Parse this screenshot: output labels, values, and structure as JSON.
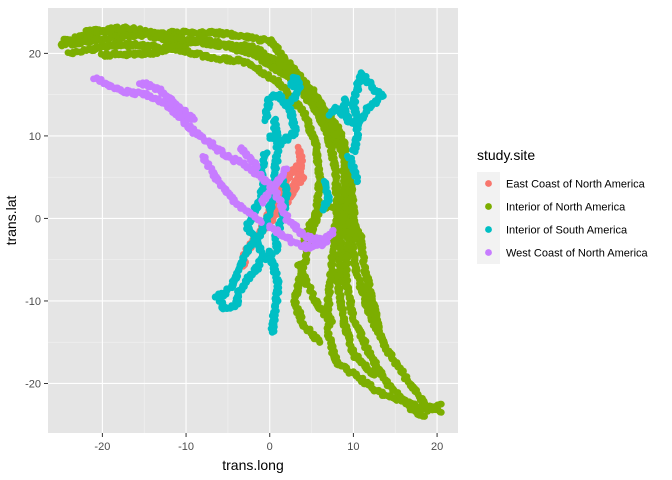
{
  "chart_data": {
    "type": "scatter",
    "xlabel": "trans.long",
    "ylabel": "trans.lat",
    "xlim": [
      -26.5,
      22.5
    ],
    "ylim": [
      -26,
      25.5
    ],
    "xticks": [
      -20,
      -10,
      0,
      10,
      20
    ],
    "yticks": [
      -20,
      -10,
      0,
      10,
      20
    ],
    "xtick_labels": [
      "-20",
      "-10",
      "0",
      "10",
      "20"
    ],
    "ytick_labels": [
      "-20",
      "-10",
      "0",
      "10",
      "20"
    ],
    "grid": true,
    "panel_background": "#e5e5e5",
    "legend": {
      "title": "study.site",
      "placement": "right"
    },
    "series": [
      {
        "name": "East Coast of North America",
        "color": "#f8766d",
        "tracks": [
          [
            [
              3.5,
              8.5
            ],
            [
              3.8,
              7.0
            ],
            [
              3.6,
              5.5
            ],
            [
              3.0,
              4.2
            ],
            [
              2.2,
              3.0
            ],
            [
              1.4,
              1.6
            ],
            [
              0.6,
              0.4
            ],
            [
              0.2,
              -0.2
            ],
            [
              -0.6,
              -1.2
            ],
            [
              -1.4,
              -2.2
            ],
            [
              -2.2,
              -3.0
            ],
            [
              -2.9,
              -4.3
            ],
            [
              -3.2,
              -5.8
            ]
          ],
          [
            [
              3.2,
              6.6
            ],
            [
              2.6,
              5.6
            ],
            [
              2.0,
              4.8
            ],
            [
              1.3,
              3.3
            ],
            [
              0.7,
              2.2
            ],
            [
              0.0,
              1.0
            ],
            [
              -0.4,
              0.3
            ]
          ],
          [
            [
              4.1,
              5.0
            ],
            [
              3.2,
              4.0
            ],
            [
              2.4,
              2.5
            ],
            [
              1.4,
              1.3
            ],
            [
              0.5,
              0.6
            ],
            [
              -0.3,
              -0.4
            ],
            [
              -1.0,
              -0.9
            ]
          ]
        ]
      },
      {
        "name": "Interior of North America",
        "color": "#7cae00",
        "tracks": [
          [
            [
              -24.5,
              21.5
            ],
            [
              -20.0,
              22.5
            ],
            [
              -16.0,
              22.7
            ],
            [
              -12.0,
              21.5
            ],
            [
              -7.0,
              21.2
            ],
            [
              -2.0,
              20.8
            ],
            [
              2.0,
              18.0
            ],
            [
              5.0,
              14.5
            ],
            [
              7.0,
              10.0
            ],
            [
              8.0,
              5.0
            ],
            [
              8.0,
              0.0
            ],
            [
              7.5,
              -5.0
            ],
            [
              7.0,
              -10.0
            ],
            [
              7.0,
              -14.0
            ],
            [
              8.0,
              -17.5
            ],
            [
              11.0,
              -19.5
            ],
            [
              13.0,
              -21.0
            ],
            [
              16.5,
              -22.3
            ],
            [
              19.0,
              -23.2
            ],
            [
              20.5,
              -22.5
            ]
          ],
          [
            [
              -24.0,
              20.0
            ],
            [
              -19.0,
              21.0
            ],
            [
              -15.0,
              21.0
            ],
            [
              -11.0,
              20.5
            ],
            [
              -7.0,
              19.5
            ],
            [
              -3.0,
              19.0
            ],
            [
              1.0,
              16.5
            ],
            [
              4.0,
              13.0
            ],
            [
              5.5,
              9.0
            ],
            [
              6.0,
              4.5
            ],
            [
              5.5,
              0.0
            ],
            [
              4.5,
              -4.0
            ],
            [
              3.5,
              -7.5
            ],
            [
              3.0,
              -10.0
            ],
            [
              4.0,
              -13.0
            ],
            [
              6.0,
              -15.0
            ]
          ],
          [
            [
              -25.0,
              21.0
            ],
            [
              -18.0,
              22.0
            ],
            [
              -12.0,
              22.5
            ],
            [
              -6.0,
              22.5
            ],
            [
              0.0,
              21.5
            ],
            [
              3.0,
              18.0
            ],
            [
              6.0,
              14.0
            ],
            [
              8.5,
              10.5
            ],
            [
              9.5,
              6.0
            ],
            [
              10.0,
              1.0
            ],
            [
              10.0,
              -5.0
            ],
            [
              11.5,
              -10.5
            ],
            [
              13.5,
              -15.0
            ],
            [
              16.0,
              -19.0
            ],
            [
              18.5,
              -22.5
            ],
            [
              20.5,
              -23.5
            ]
          ],
          [
            [
              -20.0,
              19.8
            ],
            [
              -14.0,
              20.0
            ],
            [
              -8.0,
              21.8
            ],
            [
              -2.0,
              20.0
            ],
            [
              2.5,
              17.0
            ],
            [
              6.5,
              12.0
            ],
            [
              8.8,
              8.0
            ],
            [
              9.8,
              3.0
            ],
            [
              9.5,
              -1.5
            ],
            [
              9.0,
              -7.0
            ],
            [
              10.0,
              -12.0
            ],
            [
              12.0,
              -16.5
            ],
            [
              14.0,
              -20.0
            ],
            [
              17.0,
              -23.0
            ],
            [
              18.5,
              -24.0
            ]
          ],
          [
            [
              -22.0,
              22.6
            ],
            [
              -17.0,
              23.1
            ],
            [
              -12.0,
              22.0
            ],
            [
              -5.0,
              20.8
            ],
            [
              1.5,
              19.0
            ],
            [
              5.0,
              15.5
            ],
            [
              7.5,
              11.5
            ],
            [
              9.0,
              6.5
            ],
            [
              8.8,
              2.0
            ],
            [
              8.5,
              -3.0
            ],
            [
              8.2,
              -8.0
            ],
            [
              9.0,
              -13.0
            ],
            [
              10.0,
              -16.5
            ],
            [
              12.5,
              -19.0
            ]
          ],
          [
            [
              4.0,
              -3.0
            ],
            [
              4.5,
              -1.5
            ],
            [
              5.5,
              0.5
            ],
            [
              6.5,
              1.5
            ],
            [
              8.0,
              1.0
            ],
            [
              9.5,
              -0.5
            ]
          ],
          [
            [
              3.5,
              -5.5
            ],
            [
              4.5,
              -8.0
            ],
            [
              6.0,
              -11.0
            ],
            [
              7.5,
              -12.5
            ]
          ],
          [
            [
              9.0,
              2.0
            ],
            [
              10.8,
              -2.0
            ],
            [
              11.3,
              -6.0
            ],
            [
              12.0,
              -9.0
            ],
            [
              12.5,
              -11.0
            ],
            [
              13.0,
              -13.5
            ]
          ]
        ]
      },
      {
        "name": "Interior of South America",
        "color": "#00bfc4",
        "tracks": [
          [
            [
              -0.5,
              12.0
            ],
            [
              0.0,
              14.5
            ],
            [
              1.0,
              15.0
            ],
            [
              2.5,
              13.0
            ],
            [
              3.0,
              10.5
            ],
            [
              1.2,
              9.0
            ],
            [
              0.0,
              10.0
            ]
          ],
          [
            [
              0.5,
              12.0
            ],
            [
              1.0,
              9.0
            ],
            [
              0.7,
              6.0
            ],
            [
              0.5,
              3.5
            ],
            [
              0.0,
              1.0
            ],
            [
              -0.6,
              -1.0
            ],
            [
              -1.6,
              -2.5
            ],
            [
              -2.8,
              -4.0
            ],
            [
              -3.5,
              -6.0
            ],
            [
              -4.5,
              -8.0
            ],
            [
              -5.5,
              -9.2
            ],
            [
              -6.5,
              -9.5
            ]
          ],
          [
            [
              -0.5,
              8.0
            ],
            [
              -1.0,
              6.0
            ],
            [
              -0.6,
              4.0
            ],
            [
              -1.3,
              2.0
            ],
            [
              -2.0,
              0.5
            ],
            [
              -2.7,
              -1.0
            ],
            [
              -1.5,
              -3.0
            ],
            [
              -0.5,
              -5.0
            ]
          ],
          [
            [
              0.0,
              -4.0
            ],
            [
              0.5,
              -6.0
            ],
            [
              1.0,
              -8.0
            ],
            [
              0.8,
              -10.0
            ],
            [
              0.5,
              -12.0
            ],
            [
              0.3,
              -13.8
            ]
          ],
          [
            [
              -1.0,
              -5.0
            ],
            [
              -1.8,
              -6.5
            ],
            [
              -2.8,
              -7.5
            ],
            [
              -3.7,
              -9.0
            ],
            [
              -4.0,
              -10.5
            ],
            [
              -5.5,
              -11.0
            ],
            [
              -6.0,
              -10.0
            ]
          ],
          [
            [
              1.5,
              5.0
            ],
            [
              2.0,
              3.0
            ],
            [
              1.5,
              0.0
            ],
            [
              0.8,
              -2.0
            ],
            [
              0.8,
              -4.0
            ]
          ],
          [
            [
              2.5,
              16.0
            ],
            [
              3.0,
              17.0
            ],
            [
              3.7,
              16.0
            ],
            [
              3.0,
              14.5
            ],
            [
              2.0,
              14.0
            ]
          ],
          [
            [
              6.5,
              1.0
            ],
            [
              7.0,
              2.5
            ],
            [
              6.5,
              4.5
            ]
          ],
          [
            [
              10.0,
              8.0
            ],
            [
              10.5,
              10.0
            ],
            [
              10.5,
              12.0
            ],
            [
              10.0,
              14.0
            ],
            [
              10.5,
              16.0
            ],
            [
              11.0,
              17.5
            ],
            [
              11.8,
              16.5
            ],
            [
              12.5,
              15.5
            ],
            [
              13.5,
              15.0
            ],
            [
              12.5,
              14.0
            ],
            [
              11.5,
              13.0
            ],
            [
              11.0,
              12.0
            ],
            [
              9.5,
              11.5
            ],
            [
              9.0,
              13.0
            ],
            [
              9.0,
              14.5
            ]
          ],
          [
            [
              9.5,
              7.5
            ],
            [
              10.0,
              6.0
            ],
            [
              10.5,
              4.5
            ]
          ],
          [
            [
              7.0,
              12.5
            ],
            [
              8.0,
              13.5
            ],
            [
              8.6,
              12.5
            ]
          ]
        ]
      },
      {
        "name": "West Coast of North America",
        "color": "#c77cff",
        "tracks": [
          [
            [
              -21.0,
              17.0
            ],
            [
              -18.0,
              15.5
            ],
            [
              -15.0,
              15.0
            ],
            [
              -12.5,
              14.0
            ],
            [
              -10.5,
              12.0
            ],
            [
              -9.0,
              10.5
            ],
            [
              -7.0,
              9.0
            ],
            [
              -5.0,
              7.5
            ],
            [
              -3.0,
              6.5
            ],
            [
              -1.0,
              5.0
            ],
            [
              0.5,
              3.5
            ],
            [
              1.5,
              1.5
            ],
            [
              2.0,
              0.0
            ],
            [
              3.0,
              -1.0
            ],
            [
              4.0,
              -2.0
            ],
            [
              5.0,
              -2.5
            ],
            [
              6.5,
              -2.5
            ]
          ],
          [
            [
              -15.5,
              16.5
            ],
            [
              -13.0,
              15.5
            ],
            [
              -11.0,
              13.5
            ],
            [
              -9.0,
              12.0
            ]
          ],
          [
            [
              -8.0,
              7.5
            ],
            [
              -6.5,
              5.0
            ],
            [
              -5.0,
              3.0
            ],
            [
              -3.5,
              1.5
            ],
            [
              -2.0,
              0.5
            ],
            [
              -1.0,
              -0.5
            ]
          ],
          [
            [
              -3.5,
              8.5
            ],
            [
              -2.5,
              7.5
            ],
            [
              -1.5,
              6.2
            ]
          ],
          [
            [
              0.0,
              -1.0
            ],
            [
              1.5,
              -2.0
            ],
            [
              3.0,
              -3.0
            ],
            [
              4.5,
              -3.5
            ],
            [
              6.5,
              -3.0
            ],
            [
              7.5,
              -1.5
            ]
          ],
          [
            [
              -1.0,
              2.0
            ],
            [
              0.0,
              3.2
            ],
            [
              1.0,
              4.5
            ],
            [
              2.0,
              6.0
            ]
          ]
        ]
      }
    ]
  }
}
